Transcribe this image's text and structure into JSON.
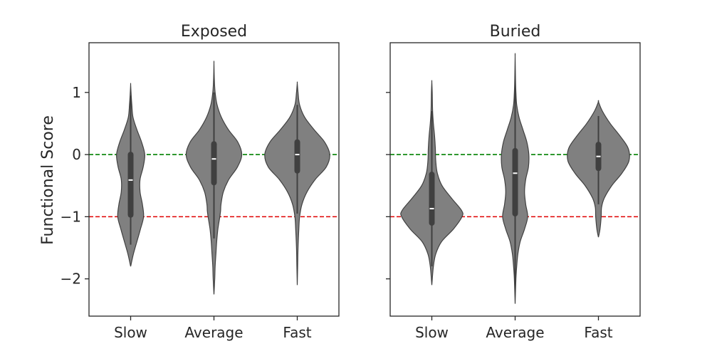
{
  "figure": {
    "ylabel": "Functional Score"
  },
  "chart_data": [
    {
      "type": "violin",
      "title": "Exposed",
      "xlabel": "",
      "ylabel": "Functional Score",
      "ylim": [
        -2.6,
        1.8
      ],
      "yticks": [
        1,
        0,
        -1,
        -2
      ],
      "ytick_labels": [
        "1",
        "0",
        "−1",
        "−2"
      ],
      "reference_lines": [
        {
          "y": 0,
          "color": "#008000",
          "style": "dashed"
        },
        {
          "y": -1,
          "color": "#e00000",
          "style": "dashed"
        }
      ],
      "categories": [
        "Slow",
        "Average",
        "Fast"
      ],
      "violins": [
        {
          "category": "Slow",
          "median": -0.41,
          "q1": -0.97,
          "q3": 0.0,
          "whisker_low": -1.45,
          "whisker_high": 0.95,
          "profile": [
            [
              -1.8,
              0.0
            ],
            [
              -1.6,
              0.07
            ],
            [
              -1.4,
              0.16
            ],
            [
              -1.2,
              0.25
            ],
            [
              -1.0,
              0.33
            ],
            [
              -0.8,
              0.3
            ],
            [
              -0.6,
              0.24
            ],
            [
              -0.4,
              0.24
            ],
            [
              -0.2,
              0.32
            ],
            [
              0.0,
              0.36
            ],
            [
              0.2,
              0.28
            ],
            [
              0.4,
              0.16
            ],
            [
              0.6,
              0.06
            ],
            [
              0.8,
              0.03
            ],
            [
              1.0,
              0.01
            ],
            [
              1.13,
              0.0
            ]
          ]
        },
        {
          "category": "Average",
          "median": -0.07,
          "q1": -0.45,
          "q3": 0.17,
          "whisker_low": -1.35,
          "whisker_high": 1.0,
          "profile": [
            [
              -2.25,
              0.0
            ],
            [
              -2.0,
              0.02
            ],
            [
              -1.8,
              0.03
            ],
            [
              -1.6,
              0.05
            ],
            [
              -1.4,
              0.07
            ],
            [
              -1.2,
              0.1
            ],
            [
              -1.0,
              0.15
            ],
            [
              -0.9,
              0.17
            ],
            [
              -0.8,
              0.18
            ],
            [
              -0.6,
              0.24
            ],
            [
              -0.4,
              0.38
            ],
            [
              -0.2,
              0.6
            ],
            [
              0.0,
              0.71
            ],
            [
              0.2,
              0.61
            ],
            [
              0.4,
              0.37
            ],
            [
              0.6,
              0.19
            ],
            [
              0.8,
              0.08
            ],
            [
              1.0,
              0.03
            ],
            [
              1.2,
              0.01
            ],
            [
              1.47,
              0.0
            ]
          ]
        },
        {
          "category": "Fast",
          "median": 0.0,
          "q1": -0.26,
          "q3": 0.2,
          "whisker_low": -0.95,
          "whisker_high": 0.8,
          "profile": [
            [
              -2.1,
              0.0
            ],
            [
              -1.8,
              0.01
            ],
            [
              -1.5,
              0.02
            ],
            [
              -1.2,
              0.04
            ],
            [
              -1.0,
              0.06
            ],
            [
              -0.8,
              0.12
            ],
            [
              -0.6,
              0.25
            ],
            [
              -0.4,
              0.46
            ],
            [
              -0.2,
              0.74
            ],
            [
              0.0,
              0.83
            ],
            [
              0.2,
              0.7
            ],
            [
              0.4,
              0.43
            ],
            [
              0.6,
              0.19
            ],
            [
              0.8,
              0.06
            ],
            [
              1.0,
              0.02
            ],
            [
              1.15,
              0.0
            ]
          ]
        }
      ]
    },
    {
      "type": "violin",
      "title": "Buried",
      "xlabel": "",
      "ylabel": "",
      "ylim": [
        -2.6,
        1.8
      ],
      "yticks": [
        1,
        0,
        -1,
        -2
      ],
      "ytick_labels": [],
      "reference_lines": [
        {
          "y": 0,
          "color": "#008000",
          "style": "dashed"
        },
        {
          "y": -1,
          "color": "#e00000",
          "style": "dashed"
        }
      ],
      "categories": [
        "Slow",
        "Average",
        "Fast"
      ],
      "violins": [
        {
          "category": "Slow",
          "median": -0.87,
          "q1": -1.1,
          "q3": -0.32,
          "whisker_low": -1.8,
          "whisker_high": 0.7,
          "profile": [
            [
              -2.1,
              0.0
            ],
            [
              -1.8,
              0.04
            ],
            [
              -1.6,
              0.1
            ],
            [
              -1.4,
              0.25
            ],
            [
              -1.2,
              0.55
            ],
            [
              -1.0,
              0.77
            ],
            [
              -0.9,
              0.76
            ],
            [
              -0.7,
              0.5
            ],
            [
              -0.5,
              0.26
            ],
            [
              -0.3,
              0.14
            ],
            [
              -0.1,
              0.1
            ],
            [
              0.1,
              0.09
            ],
            [
              0.3,
              0.07
            ],
            [
              0.5,
              0.04
            ],
            [
              0.7,
              0.02
            ],
            [
              1.0,
              0.01
            ],
            [
              1.17,
              0.0
            ]
          ]
        },
        {
          "category": "Average",
          "median": -0.3,
          "q1": -0.95,
          "q3": 0.06,
          "whisker_low": -2.2,
          "whisker_high": 1.3,
          "profile": [
            [
              -2.4,
              0.0
            ],
            [
              -2.0,
              0.02
            ],
            [
              -1.8,
              0.04
            ],
            [
              -1.6,
              0.07
            ],
            [
              -1.4,
              0.13
            ],
            [
              -1.2,
              0.24
            ],
            [
              -1.0,
              0.32
            ],
            [
              -0.8,
              0.27
            ],
            [
              -0.6,
              0.24
            ],
            [
              -0.4,
              0.27
            ],
            [
              -0.2,
              0.34
            ],
            [
              0.0,
              0.35
            ],
            [
              0.2,
              0.3
            ],
            [
              0.4,
              0.2
            ],
            [
              0.6,
              0.1
            ],
            [
              0.8,
              0.04
            ],
            [
              1.0,
              0.02
            ],
            [
              1.2,
              0.01
            ],
            [
              1.58,
              0.0
            ]
          ]
        },
        {
          "category": "Fast",
          "median": -0.03,
          "q1": -0.22,
          "q3": 0.16,
          "whisker_low": -0.8,
          "whisker_high": 0.62,
          "profile": [
            [
              -1.33,
              0.0
            ],
            [
              -1.2,
              0.04
            ],
            [
              -1.0,
              0.07
            ],
            [
              -0.85,
              0.08
            ],
            [
              -0.7,
              0.15
            ],
            [
              -0.5,
              0.34
            ],
            [
              -0.3,
              0.6
            ],
            [
              -0.1,
              0.78
            ],
            [
              0.1,
              0.76
            ],
            [
              0.3,
              0.55
            ],
            [
              0.5,
              0.3
            ],
            [
              0.7,
              0.1
            ],
            [
              0.85,
              0.0
            ]
          ]
        }
      ]
    }
  ]
}
